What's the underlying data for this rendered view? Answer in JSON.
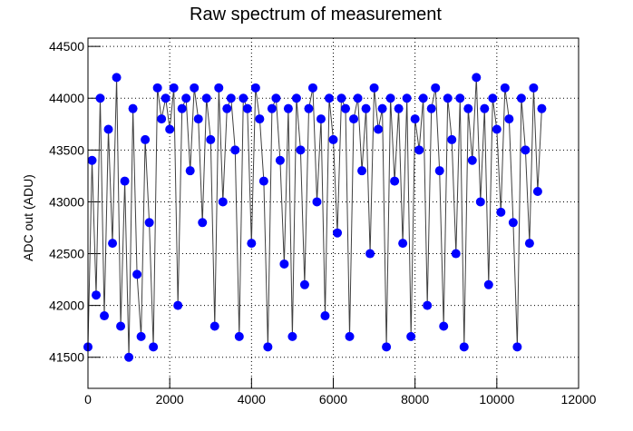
{
  "chart_data": {
    "type": "line",
    "title": "Raw spectrum of measurement",
    "y_label": "ADC out (ADU)",
    "x": [
      0,
      100,
      200,
      300,
      400,
      500,
      600,
      700,
      800,
      900,
      1000,
      1100,
      1200,
      1300,
      1400,
      1500,
      1600,
      1700,
      1800,
      1900,
      2000,
      2100,
      2200,
      2300,
      2400,
      2500,
      2600,
      2700,
      2800,
      2900,
      3000,
      3100,
      3200,
      3300,
      3400,
      3500,
      3600,
      3700,
      3800,
      3900,
      4000,
      4100,
      4200,
      4300,
      4400,
      4500,
      4600,
      4700,
      4800,
      4900,
      5000,
      5100,
      5200,
      5300,
      5400,
      5500,
      5600,
      5700,
      5800,
      5900,
      6000,
      6100,
      6200,
      6300,
      6400,
      6500,
      6600,
      6700,
      6800,
      6900,
      7000,
      7100,
      7200,
      7300,
      7400,
      7500,
      7600,
      7700,
      7800,
      7900,
      8000,
      8100,
      8200,
      8300,
      8400,
      8500,
      8600,
      8700,
      8800,
      8900,
      9000,
      9100,
      9200,
      9300,
      9400,
      9500,
      9600,
      9700,
      9800,
      9900,
      10000,
      10100,
      10200,
      10300,
      10400,
      10500,
      10600,
      10700,
      10800,
      10900,
      11000,
      11100
    ],
    "series": [
      {
        "color": "#0000ff",
        "line_color": "#404040",
        "values": [
          41600,
          43400,
          42100,
          44000,
          41900,
          43700,
          42600,
          44200,
          41800,
          43200,
          41500,
          43900,
          42300,
          41700,
          43600,
          42800,
          41600,
          44100,
          43800,
          44000,
          43700,
          44100,
          42000,
          43900,
          44000,
          43300,
          44100,
          43800,
          42800,
          44000,
          43600,
          41800,
          44100,
          43000,
          43900,
          44000,
          43500,
          41700,
          44000,
          43900,
          42600,
          44100,
          43800,
          43200,
          41600,
          43900,
          44000,
          43400,
          42400,
          43900,
          41700,
          44000,
          43500,
          42200,
          43900,
          44100,
          43000,
          43800,
          41900,
          44000,
          43600,
          42700,
          44000,
          43900,
          41700,
          43800,
          44000,
          43300,
          43900,
          42500,
          44100,
          43700,
          43900,
          41600,
          44000,
          43200,
          43900,
          42600,
          44000,
          41700,
          43800,
          43500,
          44000,
          42000,
          43900,
          44100,
          43300,
          41800,
          44000,
          43600,
          42500,
          44000,
          41600,
          43900,
          43400,
          44200,
          43000,
          43900,
          42200,
          44000,
          43700,
          42900,
          44100,
          43800,
          42800,
          41600,
          44000,
          43500,
          42600,
          44100,
          43100,
          43900
        ]
      }
    ],
    "xlim": [
      0,
      12000
    ],
    "ylim": [
      41200,
      44580
    ],
    "xticks": [
      0,
      2000,
      4000,
      6000,
      8000,
      10000,
      12000
    ],
    "yticks": [
      41500,
      42000,
      42500,
      43000,
      43500,
      44000,
      44500
    ],
    "grid": true
  }
}
